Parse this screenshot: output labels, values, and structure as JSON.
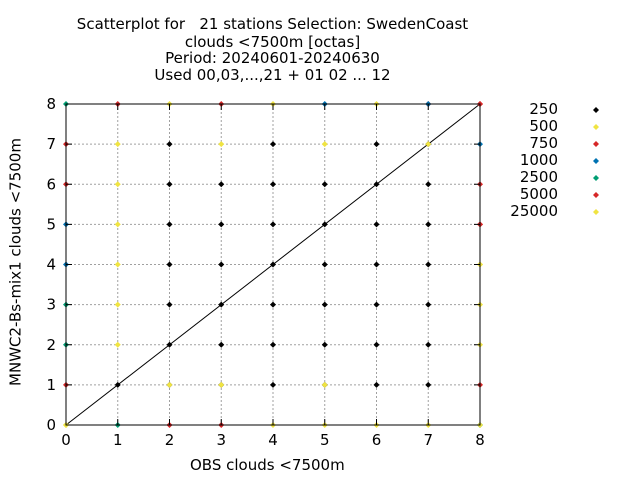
{
  "title": {
    "line1": "Scatterplot for   21 stations Selection: SwedenCoast",
    "line2": "clouds <7500m [octas]",
    "line3": "Period: 20240601-20240630",
    "line4": "Used 00,03,...,21 + 01 02 ... 12"
  },
  "chart_data": {
    "type": "scatter",
    "xlabel": "OBS clouds <7500m",
    "ylabel": "MNWC2-Bs-mix1 clouds <7500m",
    "xlim": [
      0,
      8
    ],
    "ylim": [
      0,
      8
    ],
    "xticks": [
      "0",
      "1",
      "2",
      "3",
      "4",
      "5",
      "6",
      "7",
      "8"
    ],
    "yticks": [
      "0",
      "1",
      "2",
      "3",
      "4",
      "5",
      "6",
      "7",
      "8"
    ],
    "grid": true,
    "diagonal_line": true,
    "legend_placement": "right",
    "series": [
      {
        "name": "250",
        "color": "#000000",
        "points": [
          [
            1,
            1
          ],
          [
            2,
            2
          ],
          [
            3,
            3
          ],
          [
            4,
            4
          ],
          [
            5,
            5
          ],
          [
            6,
            6
          ],
          [
            7,
            7
          ],
          [
            2,
            1
          ],
          [
            3,
            1
          ],
          [
            4,
            1
          ],
          [
            5,
            1
          ],
          [
            6,
            1
          ],
          [
            7,
            1
          ],
          [
            3,
            2
          ],
          [
            4,
            2
          ],
          [
            5,
            2
          ],
          [
            6,
            2
          ],
          [
            7,
            2
          ],
          [
            2,
            3
          ],
          [
            4,
            3
          ],
          [
            5,
            3
          ],
          [
            6,
            3
          ],
          [
            7,
            3
          ],
          [
            2,
            4
          ],
          [
            3,
            4
          ],
          [
            5,
            4
          ],
          [
            6,
            4
          ],
          [
            7,
            4
          ],
          [
            2,
            5
          ],
          [
            3,
            5
          ],
          [
            4,
            5
          ],
          [
            6,
            5
          ],
          [
            7,
            5
          ],
          [
            2,
            6
          ],
          [
            3,
            6
          ],
          [
            4,
            6
          ],
          [
            5,
            6
          ],
          [
            7,
            6
          ],
          [
            2,
            7
          ],
          [
            4,
            7
          ],
          [
            6,
            7
          ]
        ]
      },
      {
        "name": "500",
        "color": "#f0e442",
        "points": [
          [
            0,
            0
          ],
          [
            4,
            0
          ],
          [
            5,
            0
          ],
          [
            6,
            0
          ],
          [
            7,
            0
          ],
          [
            2,
            1
          ],
          [
            3,
            1
          ],
          [
            5,
            1
          ],
          [
            1,
            2
          ],
          [
            8,
            2
          ],
          [
            1,
            3
          ],
          [
            8,
            3
          ],
          [
            1,
            4
          ],
          [
            8,
            4
          ],
          [
            1,
            5
          ],
          [
            1,
            6
          ],
          [
            1,
            7
          ],
          [
            3,
            7
          ],
          [
            5,
            7
          ],
          [
            7,
            7
          ],
          [
            2,
            8
          ],
          [
            4,
            8
          ],
          [
            6,
            8
          ]
        ]
      },
      {
        "name": "750",
        "color": "#d62728",
        "points": [
          [
            0,
            1
          ],
          [
            0,
            6
          ],
          [
            0,
            7
          ],
          [
            1,
            8
          ],
          [
            3,
            8
          ],
          [
            8,
            8
          ],
          [
            8,
            1
          ],
          [
            8,
            5
          ],
          [
            8,
            6
          ],
          [
            7,
            8
          ]
        ]
      },
      {
        "name": "1000",
        "color": "#0072b2",
        "points": [
          [
            0,
            4
          ],
          [
            0,
            5
          ],
          [
            5,
            8
          ],
          [
            7,
            8
          ],
          [
            8,
            7
          ]
        ]
      },
      {
        "name": "2500",
        "color": "#009e73",
        "points": [
          [
            0,
            2
          ],
          [
            0,
            3
          ],
          [
            0,
            8
          ],
          [
            1,
            0
          ],
          [
            8,
            0
          ]
        ]
      },
      {
        "name": "5000",
        "color": "#d62728",
        "points": [
          [
            2,
            0
          ],
          [
            3,
            0
          ],
          [
            8,
            5
          ],
          [
            8,
            8
          ]
        ]
      },
      {
        "name": "25000",
        "color": "#f0e442",
        "points": [
          [
            8,
            0
          ],
          [
            0,
            0
          ],
          [
            8,
            4
          ]
        ]
      }
    ]
  }
}
